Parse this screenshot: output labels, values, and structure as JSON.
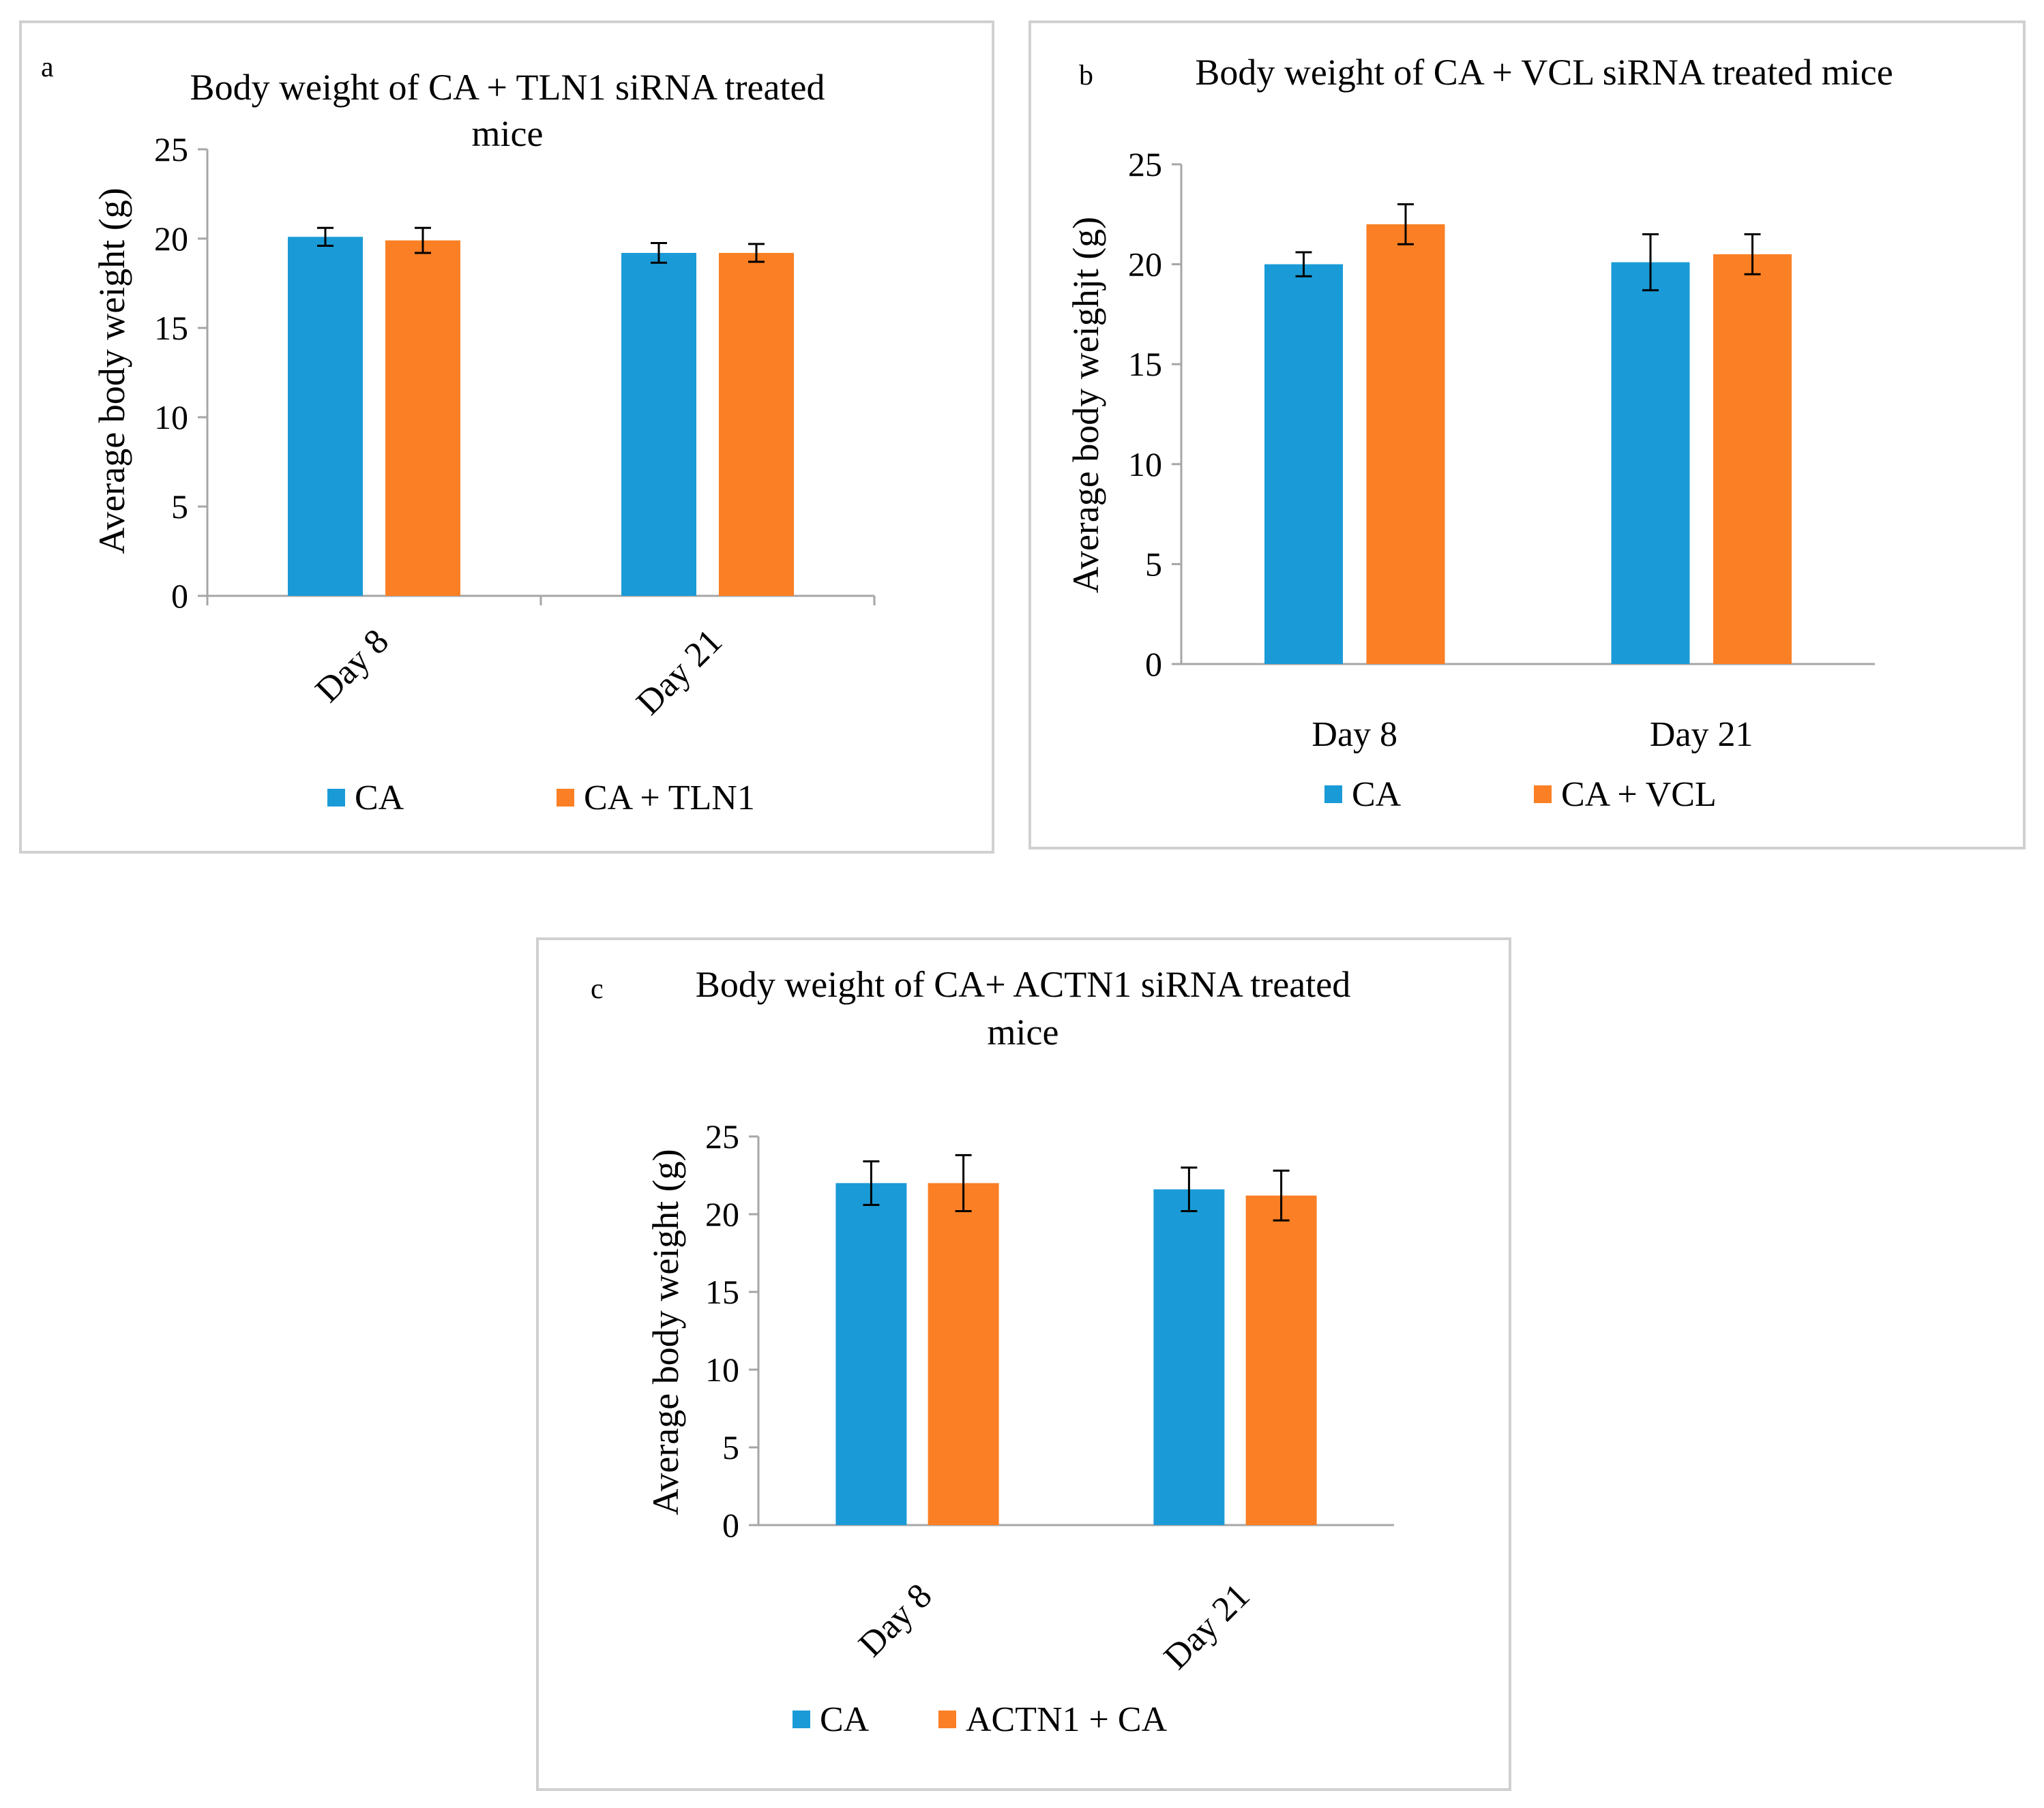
{
  "colors": {
    "series1": "#1a9bd7",
    "series2": "#fb7f24",
    "axis": "#a6a6a6",
    "error_bar": "#000000"
  },
  "chart_data": [
    {
      "type": "bar",
      "panel_letter": "a",
      "title_lines": [
        "Body weight  of CA + TLN1  siRNA  treated",
        "mice"
      ],
      "ylabel": "Average  body weight  (g)",
      "xlabel": "",
      "ylim": [
        0,
        25
      ],
      "yticks": [
        "0",
        "5",
        "10",
        "15",
        "20",
        "25"
      ],
      "categories": [
        "Day 8",
        "Day 21"
      ],
      "rotated_categories": true,
      "legend_position": "bottom",
      "series": [
        {
          "name": "CA",
          "values": [
            20.1,
            19.2
          ],
          "errors": [
            0.5,
            0.55
          ]
        },
        {
          "name": "CA + TLN1",
          "values": [
            19.9,
            19.2
          ],
          "errors": [
            0.7,
            0.5
          ]
        }
      ]
    },
    {
      "type": "bar",
      "panel_letter": "b",
      "title_lines": [
        "Body weight of CA + VCL  siRNA  treated mice"
      ],
      "ylabel": "Average  body weighjt (g)",
      "xlabel": "",
      "ylim": [
        0,
        25
      ],
      "yticks": [
        "0",
        "5",
        "10",
        "15",
        "20",
        "25"
      ],
      "categories": [
        "Day 8",
        "Day 21"
      ],
      "rotated_categories": false,
      "legend_position": "bottom",
      "series": [
        {
          "name": "CA",
          "values": [
            20.0,
            20.1
          ],
          "errors": [
            0.6,
            1.4
          ]
        },
        {
          "name": "CA + VCL",
          "values": [
            22.0,
            20.5
          ],
          "errors": [
            1.0,
            1.0
          ]
        }
      ]
    },
    {
      "type": "bar",
      "panel_letter": "c",
      "title_lines": [
        "Body weight of CA+ ACTN1 siRNA treated",
        "mice"
      ],
      "ylabel": "Average body weight (g)",
      "xlabel": "",
      "ylim": [
        0,
        25
      ],
      "yticks": [
        "0",
        "5",
        "10",
        "15",
        "20",
        "25"
      ],
      "categories": [
        "Day 8",
        "Day 21"
      ],
      "rotated_categories": true,
      "legend_position": "bottom",
      "series": [
        {
          "name": "CA",
          "values": [
            22.0,
            21.6
          ],
          "errors": [
            1.4,
            1.4
          ]
        },
        {
          "name": "ACTN1 + CA",
          "values": [
            22.0,
            21.2
          ],
          "errors": [
            1.8,
            1.6
          ]
        }
      ]
    }
  ]
}
